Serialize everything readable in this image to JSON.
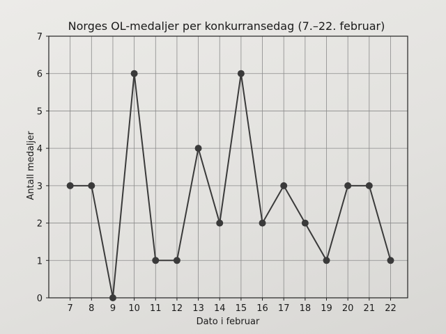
{
  "chart_data": {
    "type": "line",
    "title": "Norges OL-medaljer per konkurransedag (7.–22. februar)",
    "xlabel": "Dato i februar",
    "ylabel": "Antall medaljer",
    "x": [
      7,
      8,
      9,
      10,
      11,
      12,
      13,
      14,
      15,
      16,
      17,
      18,
      19,
      20,
      21,
      22
    ],
    "values": [
      3,
      3,
      0,
      6,
      1,
      1,
      4,
      2,
      6,
      2,
      3,
      2,
      1,
      3,
      3,
      1
    ],
    "xticks": [
      "7",
      "8",
      "9",
      "10",
      "11",
      "12",
      "13",
      "14",
      "15",
      "16",
      "17",
      "18",
      "19",
      "20",
      "21",
      "22"
    ],
    "yticks": [
      "0",
      "1",
      "2",
      "3",
      "4",
      "5",
      "6",
      "7"
    ],
    "xlim": [
      6,
      22.8
    ],
    "ylim": [
      0,
      7
    ],
    "grid": true,
    "marker": "circle",
    "line_color": "#3a3a3a"
  }
}
